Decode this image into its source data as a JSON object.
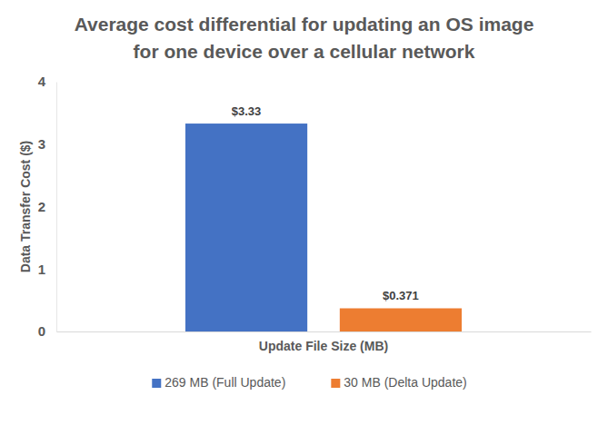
{
  "chart_data": {
    "type": "bar",
    "title": "Average cost differential for updating an OS image for one device over a cellular network",
    "x_label": "Update File Size (MB)",
    "y_label": "Data Transfer Cost ($)",
    "categories": [
      null
    ],
    "series": [
      {
        "name": "269 MB (Full Update)",
        "color": "#4472c4",
        "values": [
          3.33
        ],
        "value_labels": [
          "$3.33"
        ]
      },
      {
        "name": "30 MB (Delta Update)",
        "color": "#ed7d31",
        "values": [
          0.371
        ],
        "value_labels": [
          "$0.371"
        ]
      }
    ],
    "ylim": [
      0,
      4
    ],
    "yticks": [
      0,
      1,
      2,
      3,
      4
    ],
    "grid": false,
    "legend": "bottom",
    "data_labels": true
  }
}
